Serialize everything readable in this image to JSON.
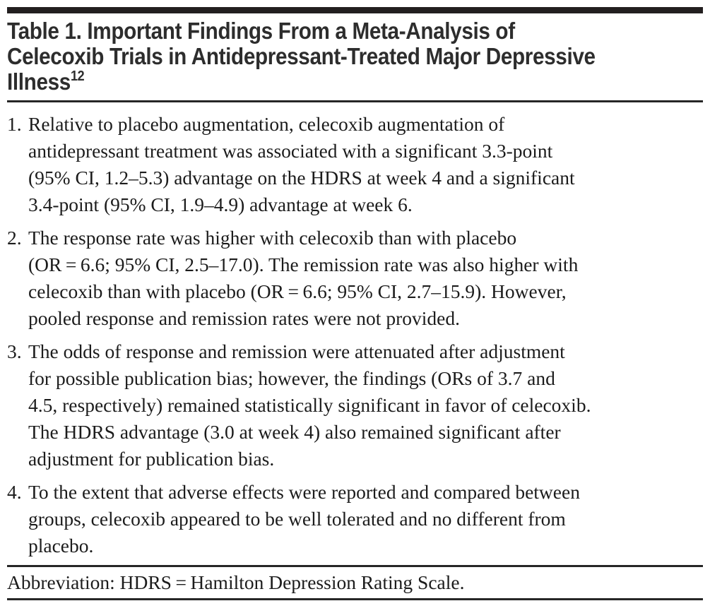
{
  "table": {
    "title_lines": [
      "Table 1. Important Findings From a Meta-Analysis of",
      "Celecoxib Trials in Antidepressant-Treated Major Depressive",
      "Illness"
    ],
    "title_superscript": "12",
    "findings": [
      {
        "number": "1.",
        "lines": [
          "Relative to placebo augmentation, celecoxib augmentation of",
          "antidepressant treatment was associated with a significant 3.3-point",
          "(95% CI, 1.2–5.3) advantage on the HDRS at week 4 and a significant",
          "3.4-point (95% CI, 1.9–4.9) advantage at week 6."
        ]
      },
      {
        "number": "2.",
        "lines": [
          "The response rate was higher with celecoxib than with placebo",
          "(OR = 6.6; 95% CI, 2.5–17.0). The remission rate was also higher with",
          "celecoxib than with placebo (OR = 6.6; 95% CI, 2.7–15.9). However,",
          "pooled response and remission rates were not provided."
        ]
      },
      {
        "number": "3.",
        "lines": [
          "The odds of response and remission were attenuated after adjustment",
          "for possible publication bias; however, the findings (ORs of 3.7 and",
          "4.5, respectively) remained statistically significant in favor of celecoxib.",
          "The HDRS advantage (3.0 at week 4) also remained significant after",
          "adjustment for publication bias."
        ]
      },
      {
        "number": "4.",
        "lines": [
          "To the extent that adverse effects were reported and compared between",
          "groups, celecoxib appeared to be well tolerated and no different from",
          "placebo."
        ]
      }
    ],
    "footnote": "Abbreviation: HDRS = Hamilton Depression Rating Scale.",
    "colors": {
      "top_bar": "#231f20",
      "title_text": "#2d2d2d",
      "body_text": "#1c1c1c",
      "rule": "#262626",
      "background": "#ffffff"
    }
  }
}
